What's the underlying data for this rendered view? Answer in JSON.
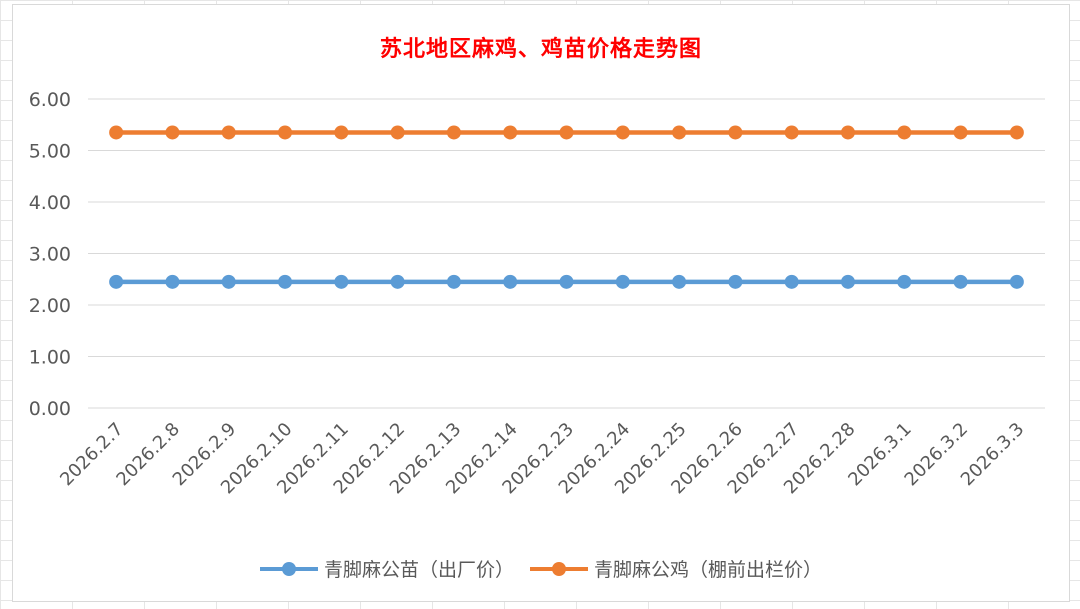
{
  "chart_data": {
    "type": "line",
    "title": "苏北地区麻鸡、鸡苗价格走势图",
    "title_color": "#ff0000",
    "categories": [
      "2026.2.7",
      "2026.2.8",
      "2026.2.9",
      "2026.2.10",
      "2026.2.11",
      "2026.2.12",
      "2026.2.13",
      "2026.2.14",
      "2026.2.23",
      "2026.2.24",
      "2026.2.25",
      "2026.2.26",
      "2026.2.27",
      "2026.2.28",
      "2026.3.1",
      "2026.3.2",
      "2026.3.3"
    ],
    "ylim": [
      0,
      6
    ],
    "yticks": [
      "0.00",
      "1.00",
      "2.00",
      "3.00",
      "4.00",
      "5.00",
      "6.00"
    ],
    "grid": true,
    "legend_position": "bottom",
    "series": [
      {
        "name": "青脚麻公苗（出厂价）",
        "color": "#5b9bd5",
        "values": [
          2.45,
          2.45,
          2.45,
          2.45,
          2.45,
          2.45,
          2.45,
          2.45,
          2.45,
          2.45,
          2.45,
          2.45,
          2.45,
          2.45,
          2.45,
          2.45,
          2.45
        ]
      },
      {
        "name": "青脚麻公鸡（棚前出栏价）",
        "color": "#ed7d31",
        "values": [
          5.35,
          5.35,
          5.35,
          5.35,
          5.35,
          5.35,
          5.35,
          5.35,
          5.35,
          5.35,
          5.35,
          5.35,
          5.35,
          5.35,
          5.35,
          5.35,
          5.35
        ]
      }
    ]
  }
}
